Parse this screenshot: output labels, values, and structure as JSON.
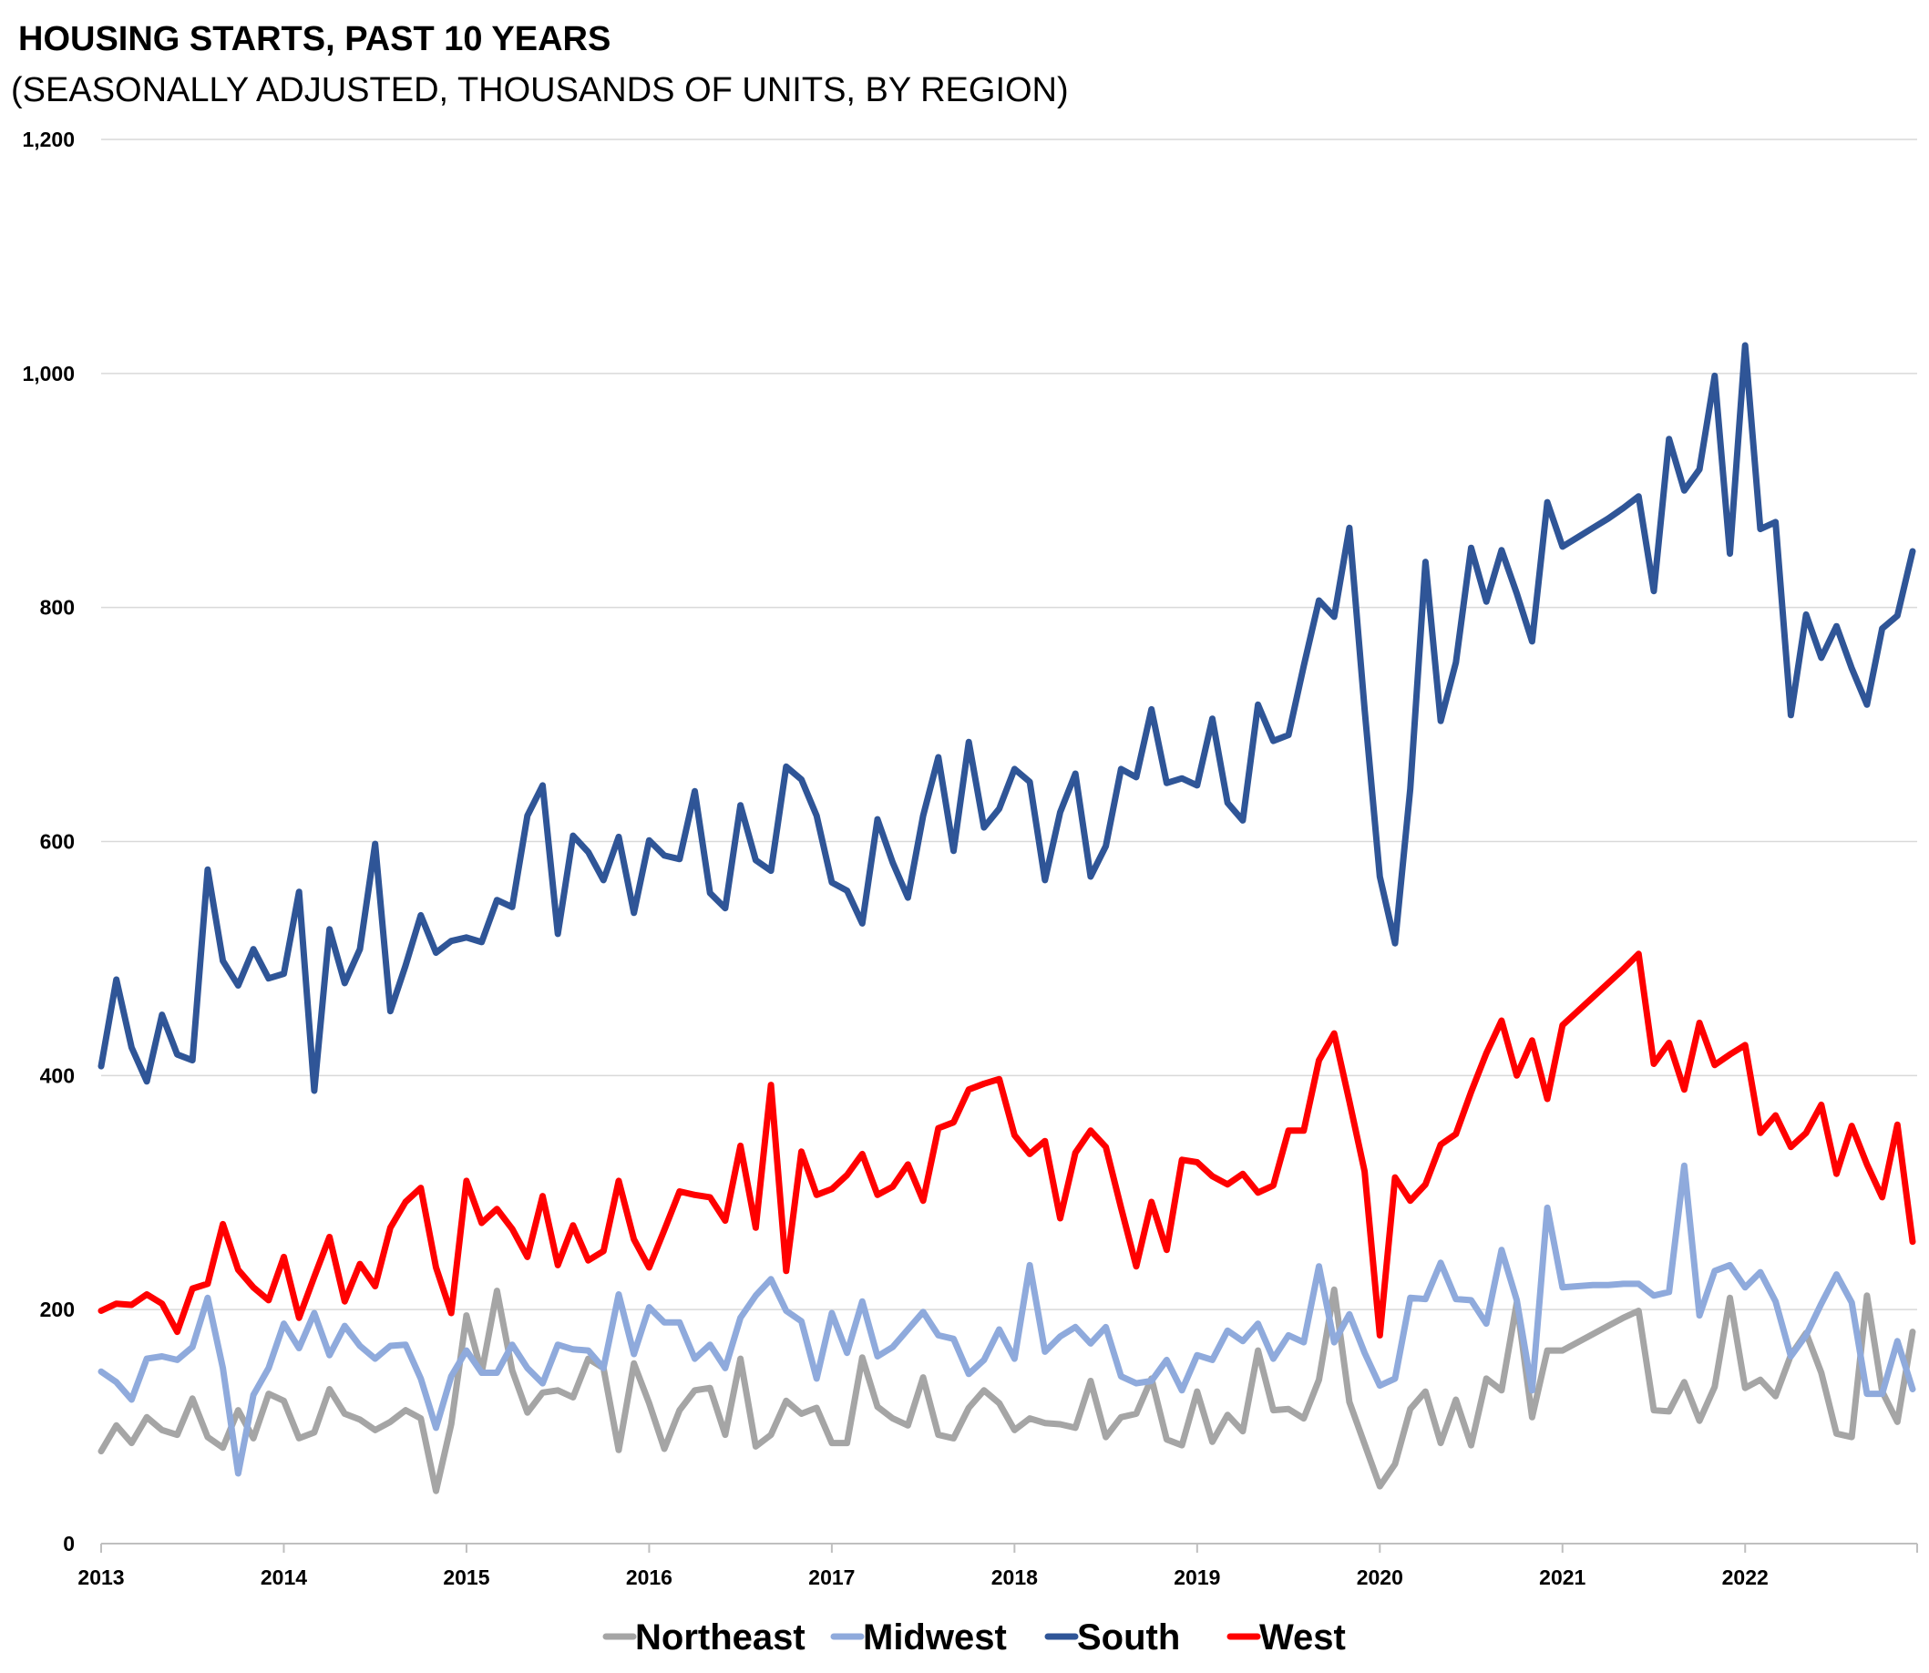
{
  "chart_data": {
    "type": "line",
    "title": "HOUSING STARTS, PAST 10 YEARS",
    "subtitle": "(SEASONALLY ADJUSTED, THOUSANDS OF UNITS, BY REGION)",
    "xlabel": "",
    "ylabel": "",
    "x_start": "2013-01",
    "x_end": "2022-12",
    "x_frequency": "monthly",
    "x_ticks": [
      "2013",
      "2014",
      "2015",
      "2016",
      "2017",
      "2018",
      "2019",
      "2020",
      "2021",
      "2022"
    ],
    "ylim": [
      0,
      1200
    ],
    "y_ticks": [
      "0",
      "200",
      "400",
      "600",
      "800",
      "1,000",
      "1,200"
    ],
    "y_tick_values": [
      0,
      200,
      400,
      600,
      800,
      1000,
      1200
    ],
    "grid": "horizontal",
    "legend_position": "bottom",
    "series": [
      {
        "name": "Northeast",
        "color": "#A5A5A5",
        "values": [
          79,
          101,
          86,
          108,
          97,
          93,
          124,
          91,
          82,
          114,
          90,
          128,
          122,
          90,
          95,
          132,
          111,
          106,
          97,
          104,
          114,
          107,
          45,
          102,
          195,
          146,
          216,
          148,
          112,
          129,
          131,
          125,
          158,
          150,
          80,
          154,
          120,
          81,
          114,
          131,
          133,
          93,
          158,
          83,
          93,
          122,
          111,
          116,
          86,
          86,
          159,
          117,
          107,
          101,
          142,
          93,
          90,
          116,
          131,
          120,
          97,
          107,
          103,
          102,
          99,
          139,
          91,
          108,
          111,
          141,
          89,
          84,
          130,
          87,
          110,
          96,
          165,
          114,
          115,
          107,
          140,
          217,
          121,
          85,
          49,
          68,
          115,
          130,
          86,
          123,
          84,
          141,
          131,
          206,
          108,
          165,
          165,
          172,
          179,
          186,
          193,
          199,
          114,
          113,
          138,
          105,
          134,
          210,
          133,
          140,
          126,
          161,
          180,
          146,
          94,
          91,
          212,
          130,
          104,
          181
        ]
      },
      {
        "name": "Midwest",
        "color": "#8FAADC",
        "values": [
          147,
          138,
          123,
          158,
          160,
          157,
          168,
          210,
          150,
          60,
          127,
          150,
          188,
          167,
          197,
          161,
          186,
          169,
          158,
          169,
          170,
          141,
          99,
          143,
          165,
          146,
          146,
          170,
          150,
          137,
          170,
          166,
          165,
          150,
          213,
          162,
          202,
          189,
          189,
          158,
          170,
          150,
          193,
          212,
          226,
          199,
          190,
          141,
          197,
          163,
          207,
          160,
          168,
          183,
          198,
          178,
          175,
          145,
          157,
          183,
          158,
          238,
          164,
          177,
          185,
          171,
          185,
          143,
          137,
          139,
          157,
          131,
          161,
          157,
          182,
          173,
          188,
          158,
          178,
          172,
          237,
          172,
          196,
          163,
          135,
          141,
          210,
          209,
          240,
          209,
          208,
          188,
          251,
          208,
          131,
          287,
          219,
          220,
          221,
          221,
          222,
          222,
          212,
          215,
          323,
          195,
          233,
          238,
          219,
          232,
          207,
          160,
          178,
          205,
          230,
          206,
          128,
          128,
          173,
          132
        ]
      },
      {
        "name": "South",
        "color": "#2F5597",
        "values": [
          408,
          482,
          424,
          395,
          452,
          418,
          413,
          576,
          498,
          477,
          508,
          483,
          487,
          557,
          387,
          525,
          479,
          508,
          598,
          455,
          494,
          537,
          505,
          515,
          518,
          514,
          550,
          544,
          622,
          648,
          521,
          605,
          591,
          567,
          604,
          539,
          601,
          588,
          585,
          643,
          556,
          543,
          631,
          584,
          575,
          664,
          653,
          622,
          565,
          558,
          530,
          619,
          582,
          552,
          622,
          672,
          592,
          685,
          612,
          628,
          662,
          651,
          567,
          625,
          658,
          570,
          596,
          662,
          655,
          713,
          650,
          654,
          648,
          705,
          633,
          618,
          717,
          686,
          691,
          750,
          806,
          792,
          868,
          713,
          570,
          513,
          645,
          839,
          703,
          753,
          851,
          805,
          849,
          812,
          771,
          890,
          852,
          860,
          868,
          876,
          885,
          895,
          814,
          944,
          900,
          918,
          998,
          846,
          1024,
          867,
          873,
          708,
          794,
          757,
          784,
          748,
          717,
          782,
          793,
          848
        ]
      },
      {
        "name": "West",
        "color": "#FF0000",
        "values": [
          199,
          205,
          204,
          213,
          205,
          181,
          218,
          222,
          273,
          234,
          219,
          208,
          245,
          193,
          228,
          262,
          207,
          239,
          220,
          270,
          292,
          304,
          236,
          197,
          310,
          274,
          286,
          269,
          245,
          297,
          238,
          272,
          242,
          250,
          310,
          260,
          236,
          268,
          301,
          298,
          296,
          276,
          340,
          270,
          392,
          233,
          335,
          298,
          303,
          315,
          333,
          298,
          305,
          324,
          293,
          355,
          360,
          388,
          393,
          397,
          349,
          333,
          344,
          278,
          334,
          353,
          339,
          287,
          237,
          292,
          251,
          328,
          326,
          314,
          307,
          316,
          300,
          306,
          353,
          353,
          413,
          436,
          378,
          318,
          178,
          313,
          293,
          307,
          341,
          350,
          386,
          419,
          447,
          400,
          430,
          380,
          443,
          455,
          467,
          479,
          491,
          504,
          410,
          428,
          388,
          445,
          409,
          418,
          426,
          351,
          366,
          339,
          351,
          375,
          316,
          357,
          324,
          296,
          358,
          258
        ]
      }
    ]
  }
}
